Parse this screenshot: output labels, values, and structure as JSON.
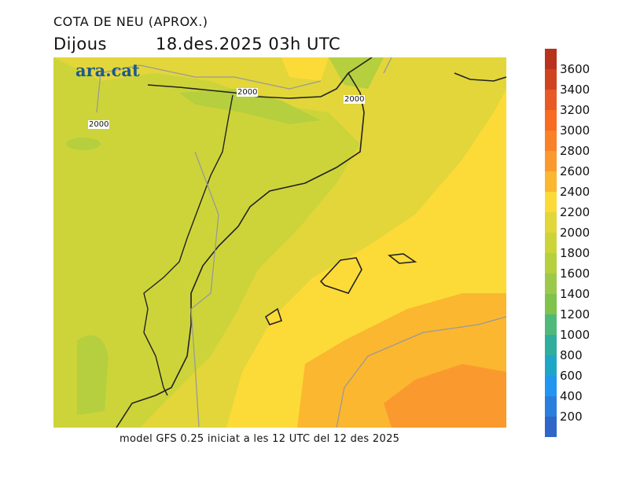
{
  "title": "COTA DE NEU (APROX.)",
  "day": "Dijous",
  "datetime": "18.des.2025 03h UTC",
  "logo": "ara.cat",
  "footer": "model GFS 0.25 iniciat a les 12 UTC del 12 des 2025",
  "contour_labels": [
    "2000",
    "2000",
    "2000"
  ],
  "colorbar": {
    "labels": [
      "3600",
      "3400",
      "3200",
      "3000",
      "2800",
      "2600",
      "2400",
      "2200",
      "2000",
      "1800",
      "1600",
      "1400",
      "1200",
      "1000",
      "800",
      "600",
      "400",
      "200"
    ],
    "colors": [
      "#b8321e",
      "#d0431f",
      "#e85a25",
      "#f76b22",
      "#f98128",
      "#fa9a2e",
      "#fbb730",
      "#fcdb38",
      "#e2d63a",
      "#cdd43a",
      "#b5cf3e",
      "#9dc94a",
      "#7fc24c",
      "#4fb97b",
      "#2fae9e",
      "#1ea6c7",
      "#2196f0",
      "#2a7fdc",
      "#2f66c8"
    ]
  }
}
